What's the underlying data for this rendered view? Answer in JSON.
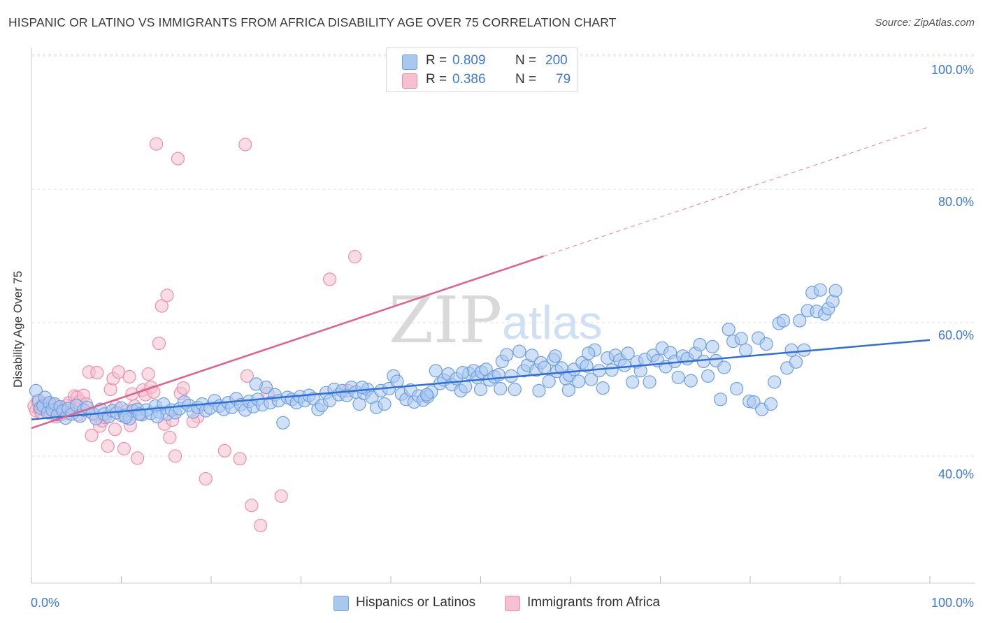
{
  "title": "HISPANIC OR LATINO VS IMMIGRANTS FROM AFRICA DISABILITY AGE OVER 75 CORRELATION CHART",
  "source": "Source: ZipAtlas.com",
  "watermark": {
    "zip": "ZIP",
    "atlas": "atlas"
  },
  "colors": {
    "blue_fill": "#a9c8f0",
    "blue_stroke": "#6e9fe0",
    "blue_line": "#2f6fd6",
    "pink_fill": "#f6c0d0",
    "pink_stroke": "#ec8fac",
    "pink_line": "#e0608a",
    "axis_label": "#3d78d8",
    "grid": "#dcdcdc"
  },
  "legend_top": {
    "rows": [
      {
        "r_label": "R =",
        "r_value": "0.809",
        "n_label": "N =",
        "n_value": "200",
        "series": "blue"
      },
      {
        "r_label": "R =",
        "r_value": "0.386",
        "n_label": "N =",
        "n_value": "79",
        "series": "pink"
      }
    ]
  },
  "legend_bottom": [
    {
      "label": "Hispanics or Latinos",
      "series": "blue"
    },
    {
      "label": "Immigrants from Africa",
      "series": "pink"
    }
  ],
  "chart_data": {
    "type": "scatter",
    "title": "HISPANIC OR LATINO VS IMMIGRANTS FROM AFRICA DISABILITY AGE OVER 75 CORRELATION CHART",
    "xlabel": "",
    "ylabel": "Disability Age Over 75",
    "xlim": [
      0,
      100
    ],
    "ylim": [
      20,
      102
    ],
    "x_tick_labels": [
      "0.0%",
      "100.0%"
    ],
    "y_ticks": [
      40,
      60,
      80,
      100
    ],
    "y_tick_labels": [
      "40.0%",
      "60.0%",
      "80.0%",
      "100.0%"
    ],
    "grid": true,
    "legend_position": "top-center",
    "series": [
      {
        "name": "Hispanics or Latinos",
        "color": "blue",
        "R": 0.809,
        "N": 200,
        "trend": {
          "x0": 0,
          "y0": 45.5,
          "x1": 100,
          "y1": 57.4,
          "dashed_from": null
        },
        "points": [
          [
            0.5,
            49.8
          ],
          [
            0.8,
            48.3
          ],
          [
            1.0,
            47.2
          ],
          [
            1.3,
            47.5
          ],
          [
            1.5,
            48.8
          ],
          [
            1.8,
            46.5
          ],
          [
            2.0,
            48.0
          ],
          [
            2.3,
            46.9
          ],
          [
            2.6,
            47.8
          ],
          [
            2.9,
            46.2
          ],
          [
            3.2,
            47.4
          ],
          [
            3.5,
            46.8
          ],
          [
            3.8,
            45.7
          ],
          [
            4.1,
            47.1
          ],
          [
            4.5,
            46.3
          ],
          [
            5.0,
            47.6
          ],
          [
            5.4,
            46.0
          ],
          [
            5.8,
            46.9
          ],
          [
            6.2,
            47.3
          ],
          [
            6.8,
            46.4
          ],
          [
            7.2,
            45.6
          ],
          [
            7.7,
            47.0
          ],
          [
            8.1,
            46.3
          ],
          [
            8.6,
            45.9
          ],
          [
            9.0,
            46.8
          ],
          [
            9.5,
            46.5
          ],
          [
            10.0,
            47.2
          ],
          [
            10.4,
            46.1
          ],
          [
            10.9,
            45.6
          ],
          [
            11.3,
            46.8
          ],
          [
            11.8,
            47.0
          ],
          [
            12.3,
            46.2
          ],
          [
            12.8,
            46.9
          ],
          [
            13.3,
            46.4
          ],
          [
            13.8,
            47.5
          ],
          [
            14.2,
            46.6
          ],
          [
            14.7,
            47.8
          ],
          [
            15.1,
            46.3
          ],
          [
            15.6,
            46.9
          ],
          [
            16.0,
            46.5
          ],
          [
            16.5,
            47.1
          ],
          [
            17.0,
            48.1
          ],
          [
            17.5,
            47.6
          ],
          [
            18.0,
            46.6
          ],
          [
            18.5,
            47.3
          ],
          [
            19.0,
            47.8
          ],
          [
            19.4,
            46.8
          ],
          [
            19.9,
            47.2
          ],
          [
            20.4,
            48.3
          ],
          [
            20.9,
            47.5
          ],
          [
            21.4,
            47.0
          ],
          [
            21.9,
            48.0
          ],
          [
            22.3,
            47.3
          ],
          [
            22.8,
            48.6
          ],
          [
            23.3,
            47.7
          ],
          [
            23.8,
            46.9
          ],
          [
            24.2,
            48.2
          ],
          [
            24.7,
            47.4
          ],
          [
            25.2,
            48.5
          ],
          [
            25.7,
            47.7
          ],
          [
            26.1,
            50.3
          ],
          [
            26.6,
            48.0
          ],
          [
            27.1,
            49.2
          ],
          [
            27.5,
            48.3
          ],
          [
            28.0,
            45.0
          ],
          [
            28.5,
            48.8
          ],
          [
            29.0,
            48.5
          ],
          [
            29.5,
            48.0
          ],
          [
            29.9,
            48.9
          ],
          [
            30.4,
            48.3
          ],
          [
            30.9,
            49.1
          ],
          [
            31.4,
            48.6
          ],
          [
            31.9,
            47.0
          ],
          [
            32.3,
            47.6
          ],
          [
            32.8,
            49.5
          ],
          [
            33.2,
            48.3
          ],
          [
            33.7,
            50.0
          ],
          [
            34.2,
            49.2
          ],
          [
            34.6,
            49.8
          ],
          [
            35.1,
            49.1
          ],
          [
            35.6,
            50.3
          ],
          [
            36.1,
            49.6
          ],
          [
            36.5,
            47.8
          ],
          [
            37.0,
            49.4
          ],
          [
            37.4,
            50.0
          ],
          [
            37.9,
            48.8
          ],
          [
            38.4,
            47.3
          ],
          [
            38.9,
            49.8
          ],
          [
            39.3,
            47.8
          ],
          [
            39.8,
            50.1
          ],
          [
            40.3,
            52.0
          ],
          [
            40.7,
            51.2
          ],
          [
            41.2,
            49.3
          ],
          [
            41.7,
            48.5
          ],
          [
            42.2,
            49.9
          ],
          [
            42.6,
            48.1
          ],
          [
            43.1,
            49.0
          ],
          [
            43.6,
            48.4
          ],
          [
            44.1,
            48.9
          ],
          [
            44.5,
            49.6
          ],
          [
            45.0,
            52.8
          ],
          [
            45.5,
            50.9
          ],
          [
            45.9,
            51.4
          ],
          [
            46.4,
            52.3
          ],
          [
            46.8,
            50.7
          ],
          [
            47.3,
            51.6
          ],
          [
            47.8,
            49.8
          ],
          [
            48.3,
            50.4
          ],
          [
            48.7,
            52.4
          ],
          [
            49.2,
            52.8
          ],
          [
            49.6,
            51.8
          ],
          [
            50.1,
            52.6
          ],
          [
            50.6,
            53.0
          ],
          [
            51.0,
            51.4
          ],
          [
            51.5,
            51.9
          ],
          [
            52.0,
            52.2
          ],
          [
            52.4,
            54.2
          ],
          [
            52.9,
            55.2
          ],
          [
            53.4,
            52.0
          ],
          [
            53.8,
            50.0
          ],
          [
            54.3,
            55.7
          ],
          [
            54.8,
            52.8
          ],
          [
            55.2,
            53.6
          ],
          [
            55.7,
            55.1
          ],
          [
            56.2,
            52.9
          ],
          [
            56.7,
            54.0
          ],
          [
            57.1,
            53.3
          ],
          [
            57.6,
            51.2
          ],
          [
            58.1,
            54.5
          ],
          [
            58.5,
            52.7
          ],
          [
            59.0,
            53.2
          ],
          [
            59.5,
            51.6
          ],
          [
            59.9,
            52.1
          ],
          [
            60.4,
            53.0
          ],
          [
            60.9,
            51.2
          ],
          [
            61.3,
            54.0
          ],
          [
            61.8,
            53.5
          ],
          [
            62.3,
            51.5
          ],
          [
            62.7,
            55.9
          ],
          [
            63.2,
            52.8
          ],
          [
            63.6,
            50.2
          ],
          [
            64.1,
            54.7
          ],
          [
            64.6,
            52.9
          ],
          [
            65.0,
            55.1
          ],
          [
            65.5,
            54.4
          ],
          [
            66.0,
            53.6
          ],
          [
            66.4,
            55.4
          ],
          [
            66.9,
            51.1
          ],
          [
            67.4,
            54.1
          ],
          [
            67.8,
            52.8
          ],
          [
            68.3,
            54.5
          ],
          [
            68.8,
            51.1
          ],
          [
            69.2,
            55.1
          ],
          [
            69.7,
            54.3
          ],
          [
            70.2,
            56.2
          ],
          [
            70.6,
            53.4
          ],
          [
            71.1,
            55.5
          ],
          [
            71.6,
            54.2
          ],
          [
            72.0,
            51.8
          ],
          [
            72.5,
            55.0
          ],
          [
            73.0,
            54.6
          ],
          [
            73.4,
            51.3
          ],
          [
            73.9,
            55.4
          ],
          [
            74.4,
            56.7
          ],
          [
            74.8,
            54.2
          ],
          [
            75.3,
            52.0
          ],
          [
            75.8,
            56.4
          ],
          [
            76.2,
            54.3
          ],
          [
            76.7,
            48.5
          ],
          [
            77.1,
            53.3
          ],
          [
            77.6,
            59.0
          ],
          [
            78.1,
            57.2
          ],
          [
            78.5,
            50.1
          ],
          [
            79.0,
            57.6
          ],
          [
            79.5,
            55.9
          ],
          [
            79.9,
            48.2
          ],
          [
            80.4,
            48.1
          ],
          [
            80.9,
            57.7
          ],
          [
            81.3,
            47.0
          ],
          [
            81.8,
            56.8
          ],
          [
            82.3,
            47.8
          ],
          [
            82.7,
            51.1
          ],
          [
            83.2,
            59.9
          ],
          [
            83.7,
            60.3
          ],
          [
            84.1,
            53.2
          ],
          [
            84.6,
            55.9
          ],
          [
            85.1,
            54.1
          ],
          [
            85.5,
            60.3
          ],
          [
            86.0,
            55.9
          ],
          [
            86.4,
            61.8
          ],
          [
            86.9,
            64.5
          ],
          [
            87.4,
            61.7
          ],
          [
            87.8,
            64.9
          ],
          [
            88.3,
            61.3
          ],
          [
            88.7,
            62.1
          ],
          [
            89.2,
            63.2
          ],
          [
            89.5,
            64.8
          ],
          [
            59.8,
            49.9
          ],
          [
            25.0,
            50.8
          ],
          [
            10.5,
            45.8
          ],
          [
            12.0,
            46.3
          ],
          [
            14.0,
            45.9
          ],
          [
            36.8,
            50.3
          ],
          [
            44.0,
            49.2
          ],
          [
            48.0,
            52.5
          ],
          [
            50.0,
            50.0
          ],
          [
            52.2,
            50.1
          ],
          [
            56.5,
            49.8
          ],
          [
            58.3,
            55.0
          ],
          [
            62.0,
            55.4
          ]
        ]
      },
      {
        "name": "Immigrants from Africa",
        "color": "pink",
        "R": 0.386,
        "N": 79,
        "trend": {
          "x0": 0,
          "y0": 44.2,
          "x1": 100,
          "y1": 89.4,
          "solid_until_x": 57.0
        },
        "points": [
          [
            0.3,
            47.5
          ],
          [
            0.5,
            46.8
          ],
          [
            0.7,
            48.2
          ],
          [
            0.9,
            47.0
          ],
          [
            1.1,
            46.5
          ],
          [
            1.3,
            47.8
          ],
          [
            1.5,
            47.2
          ],
          [
            1.7,
            46.9
          ],
          [
            1.9,
            47.6
          ],
          [
            2.1,
            46.5
          ],
          [
            2.3,
            47.8
          ],
          [
            2.5,
            47.0
          ],
          [
            2.7,
            46.8
          ],
          [
            3.0,
            47.3
          ],
          [
            3.3,
            46.2
          ],
          [
            3.6,
            46.9
          ],
          [
            3.9,
            47.5
          ],
          [
            4.2,
            48.0
          ],
          [
            4.5,
            46.9
          ],
          [
            4.8,
            49.0
          ],
          [
            5.1,
            48.8
          ],
          [
            5.4,
            48.2
          ],
          [
            5.8,
            49.1
          ],
          [
            6.1,
            47.8
          ],
          [
            6.4,
            52.6
          ],
          [
            6.7,
            43.1
          ],
          [
            7.0,
            46.2
          ],
          [
            7.3,
            52.5
          ],
          [
            7.6,
            44.5
          ],
          [
            7.9,
            45.3
          ],
          [
            8.2,
            45.8
          ],
          [
            8.5,
            41.5
          ],
          [
            8.8,
            50.0
          ],
          [
            9.1,
            51.6
          ],
          [
            9.4,
            47.4
          ],
          [
            9.7,
            52.6
          ],
          [
            10.0,
            46.1
          ],
          [
            10.3,
            41.1
          ],
          [
            10.6,
            46.8
          ],
          [
            10.9,
            51.9
          ],
          [
            11.2,
            49.3
          ],
          [
            11.5,
            47.5
          ],
          [
            11.8,
            39.7
          ],
          [
            12.1,
            46.3
          ],
          [
            12.4,
            49.9
          ],
          [
            12.7,
            49.2
          ],
          [
            13.0,
            52.3
          ],
          [
            13.3,
            50.3
          ],
          [
            13.6,
            49.6
          ],
          [
            13.9,
            86.8
          ],
          [
            14.2,
            56.9
          ],
          [
            14.5,
            62.5
          ],
          [
            14.8,
            44.8
          ],
          [
            15.1,
            64.1
          ],
          [
            15.4,
            42.8
          ],
          [
            15.7,
            45.4
          ],
          [
            16.0,
            40.0
          ],
          [
            16.3,
            84.6
          ],
          [
            16.6,
            49.4
          ],
          [
            16.9,
            50.2
          ],
          [
            18.5,
            45.9
          ],
          [
            19.4,
            36.6
          ],
          [
            21.5,
            40.8
          ],
          [
            23.2,
            39.6
          ],
          [
            23.8,
            86.7
          ],
          [
            24.0,
            52.0
          ],
          [
            24.5,
            32.6
          ],
          [
            25.5,
            29.6
          ],
          [
            26.3,
            49.4
          ],
          [
            27.8,
            34.0
          ],
          [
            33.2,
            66.5
          ],
          [
            36.0,
            69.9
          ],
          [
            35.2,
            49.8
          ],
          [
            18.0,
            45.2
          ],
          [
            11.0,
            44.6
          ],
          [
            9.3,
            44.0
          ],
          [
            5.2,
            46.2
          ],
          [
            2.8,
            45.9
          ],
          [
            4.0,
            46.4
          ]
        ]
      }
    ]
  }
}
